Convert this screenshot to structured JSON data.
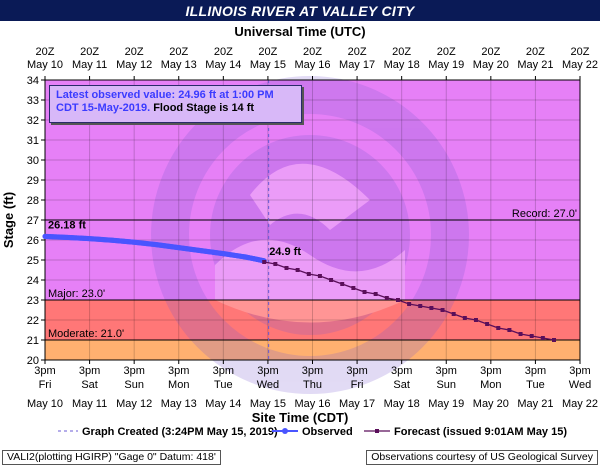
{
  "header": {
    "title": "ILLINOIS RIVER AT VALLEY CITY"
  },
  "info_box": {
    "line1": "Latest observed value: 24.96 ft at 1:00 PM",
    "line2_date": "CDT 15-May-2019.",
    "line2_flood": " Flood Stage is 14 ft"
  },
  "footer": {
    "left": "VALI2(plotting HGIRP) \"Gage 0\" Datum: 418'",
    "right": "Observations courtesy of US Geological Survey"
  },
  "colors": {
    "record_zone": "#e680f7",
    "major_zone": "#ff7777",
    "moderate_zone": "#ffb070",
    "observed": "#4a55ff",
    "forecast": "#5a0f5a",
    "created_line": "#6b5bd6"
  },
  "chart_data": {
    "type": "line",
    "title": "ILLINOIS RIVER AT VALLEY CITY",
    "ylabel": "Stage (ft)",
    "xlabel_bottom": "Site Time (CDT)",
    "xlabel_top": "Universal Time (UTC)",
    "ylim": [
      20,
      34
    ],
    "yticks": [
      20,
      21,
      22,
      23,
      24,
      25,
      26,
      27,
      28,
      29,
      30,
      31,
      32,
      33,
      34
    ],
    "x_range": [
      "2019-05-10 15:00",
      "2019-05-22 15:00"
    ],
    "top_ticks": [
      {
        "time": "20Z",
        "date": "May 10"
      },
      {
        "time": "20Z",
        "date": "May 11"
      },
      {
        "time": "20Z",
        "date": "May 12"
      },
      {
        "time": "20Z",
        "date": "May 13"
      },
      {
        "time": "20Z",
        "date": "May 14"
      },
      {
        "time": "20Z",
        "date": "May 15"
      },
      {
        "time": "20Z",
        "date": "May 16"
      },
      {
        "time": "20Z",
        "date": "May 17"
      },
      {
        "time": "20Z",
        "date": "May 18"
      },
      {
        "time": "20Z",
        "date": "May 19"
      },
      {
        "time": "20Z",
        "date": "May 20"
      },
      {
        "time": "20Z",
        "date": "May 21"
      },
      {
        "time": "20Z",
        "date": "May 22"
      }
    ],
    "bottom_ticks": [
      {
        "time": "3pm",
        "day": "Fri",
        "date": "May 10"
      },
      {
        "time": "3pm",
        "day": "Sat",
        "date": "May 11"
      },
      {
        "time": "3pm",
        "day": "Sun",
        "date": "May 12"
      },
      {
        "time": "3pm",
        "day": "Mon",
        "date": "May 13"
      },
      {
        "time": "3pm",
        "day": "Tue",
        "date": "May 14"
      },
      {
        "time": "3pm",
        "day": "Wed",
        "date": "May 15"
      },
      {
        "time": "3pm",
        "day": "Thu",
        "date": "May 16"
      },
      {
        "time": "3pm",
        "day": "Fri",
        "date": "May 17"
      },
      {
        "time": "3pm",
        "day": "Sat",
        "date": "May 18"
      },
      {
        "time": "3pm",
        "day": "Sun",
        "date": "May 19"
      },
      {
        "time": "3pm",
        "day": "Mon",
        "date": "May 20"
      },
      {
        "time": "3pm",
        "day": "Tue",
        "date": "May 21"
      },
      {
        "time": "3pm",
        "day": "Wed",
        "date": "May 22"
      }
    ],
    "flood_categories": [
      {
        "label": "Record: 27.0'",
        "stage": 27.0
      },
      {
        "label": "Major: 23.0'",
        "stage": 23.0
      },
      {
        "label": "Moderate: 21.0'",
        "stage": 21.0
      }
    ],
    "graph_created": "2019-05-15 15:24",
    "series": [
      {
        "name": "Observed",
        "start_label": "26.18 ft",
        "points": [
          [
            "2019-05-10 15:00",
            26.18
          ],
          [
            "2019-05-11 03:00",
            26.13
          ],
          [
            "2019-05-11 15:00",
            26.07
          ],
          [
            "2019-05-12 03:00",
            25.99
          ],
          [
            "2019-05-12 15:00",
            25.89
          ],
          [
            "2019-05-13 03:00",
            25.77
          ],
          [
            "2019-05-13 15:00",
            25.62
          ],
          [
            "2019-05-14 03:00",
            25.47
          ],
          [
            "2019-05-14 15:00",
            25.32
          ],
          [
            "2019-05-15 03:00",
            25.15
          ],
          [
            "2019-05-15 13:00",
            24.96
          ]
        ]
      },
      {
        "name": "Forecast (issued 9:01AM May 15)",
        "start_label": "24.9 ft",
        "points": [
          [
            "2019-05-15 13:00",
            24.9
          ],
          [
            "2019-05-15 19:00",
            24.8
          ],
          [
            "2019-05-16 01:00",
            24.6
          ],
          [
            "2019-05-16 07:00",
            24.5
          ],
          [
            "2019-05-16 13:00",
            24.3
          ],
          [
            "2019-05-16 19:00",
            24.2
          ],
          [
            "2019-05-17 01:00",
            24.0
          ],
          [
            "2019-05-17 07:00",
            23.8
          ],
          [
            "2019-05-17 13:00",
            23.6
          ],
          [
            "2019-05-17 19:00",
            23.4
          ],
          [
            "2019-05-18 01:00",
            23.3
          ],
          [
            "2019-05-18 07:00",
            23.1
          ],
          [
            "2019-05-18 13:00",
            23.0
          ],
          [
            "2019-05-18 19:00",
            22.8
          ],
          [
            "2019-05-19 01:00",
            22.7
          ],
          [
            "2019-05-19 07:00",
            22.6
          ],
          [
            "2019-05-19 13:00",
            22.5
          ],
          [
            "2019-05-19 19:00",
            22.3
          ],
          [
            "2019-05-20 01:00",
            22.1
          ],
          [
            "2019-05-20 07:00",
            22.0
          ],
          [
            "2019-05-20 13:00",
            21.8
          ],
          [
            "2019-05-20 19:00",
            21.6
          ],
          [
            "2019-05-21 01:00",
            21.5
          ],
          [
            "2019-05-21 07:00",
            21.3
          ],
          [
            "2019-05-21 13:00",
            21.2
          ],
          [
            "2019-05-21 19:00",
            21.1
          ],
          [
            "2019-05-22 01:00",
            21.0
          ]
        ]
      }
    ],
    "legend": [
      {
        "label": "Graph Created (3:24PM May 15, 2019)",
        "style": "dashed"
      },
      {
        "label": "Observed",
        "style": "circle"
      },
      {
        "label": "Forecast (issued 9:01AM May 15)",
        "style": "square"
      }
    ]
  }
}
